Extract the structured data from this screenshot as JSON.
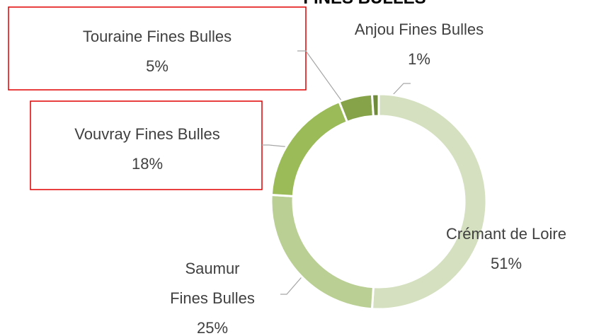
{
  "chart_data": {
    "type": "donut",
    "title": "FINES BULLES",
    "categories": [
      "Crémant de Loire",
      "Saumur Fines Bulles",
      "Vouvray Fines Bulles",
      "Touraine Fines Bulles",
      "Anjou Fines Bulles"
    ],
    "values": [
      51,
      25,
      18,
      5,
      1
    ],
    "value_labels": [
      "51%",
      "25%",
      "18%",
      "5%",
      "1%"
    ],
    "colors": [
      "#d4e0bf",
      "#b9cf93",
      "#9bbb59",
      "#86a34a",
      "#6f8a3b"
    ]
  }
}
